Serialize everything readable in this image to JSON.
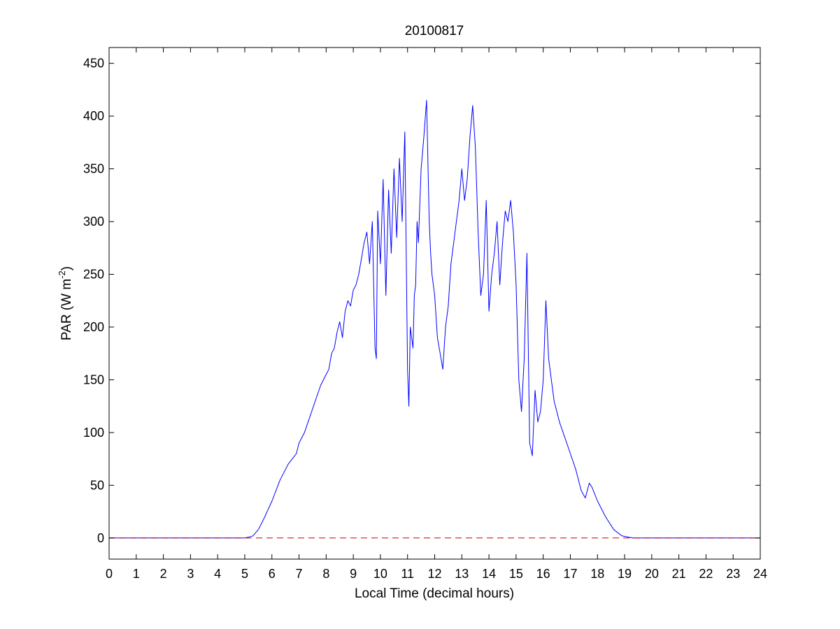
{
  "chart_data": {
    "type": "line",
    "title": "20100817",
    "xlabel": "Local Time (decimal hours)",
    "ylabel": {
      "main": "PAR (W m",
      "superscript": "-2",
      "close": ")"
    },
    "xlim": [
      0,
      24
    ],
    "ylim": [
      -20,
      465
    ],
    "xticks": [
      0,
      1,
      2,
      3,
      4,
      5,
      6,
      7,
      8,
      9,
      10,
      11,
      12,
      13,
      14,
      15,
      16,
      17,
      18,
      19,
      20,
      21,
      22,
      23,
      24
    ],
    "yticks": [
      0,
      50,
      100,
      150,
      200,
      250,
      300,
      350,
      400,
      450
    ],
    "grid": false,
    "legend": "none",
    "series": [
      {
        "color": "#0000ff",
        "style": "solid",
        "x": [
          0,
          5.0,
          5.3,
          5.5,
          5.7,
          6.0,
          6.3,
          6.6,
          6.9,
          7.0,
          7.2,
          7.4,
          7.6,
          7.8,
          8.0,
          8.1,
          8.2,
          8.3,
          8.4,
          8.5,
          8.6,
          8.7,
          8.8,
          8.9,
          9.0,
          9.1,
          9.2,
          9.3,
          9.4,
          9.5,
          9.6,
          9.7,
          9.8,
          9.85,
          9.9,
          10.0,
          10.1,
          10.2,
          10.3,
          10.4,
          10.5,
          10.6,
          10.7,
          10.8,
          10.9,
          11.0,
          11.05,
          11.1,
          11.15,
          11.2,
          11.25,
          11.3,
          11.35,
          11.4,
          11.5,
          11.6,
          11.7,
          11.8,
          11.85,
          11.9,
          12.0,
          12.1,
          12.2,
          12.3,
          12.4,
          12.5,
          12.6,
          12.7,
          12.8,
          12.9,
          13.0,
          13.1,
          13.2,
          13.3,
          13.4,
          13.5,
          13.6,
          13.7,
          13.8,
          13.9,
          14.0,
          14.1,
          14.2,
          14.3,
          14.4,
          14.5,
          14.6,
          14.7,
          14.8,
          14.9,
          15.0,
          15.1,
          15.2,
          15.3,
          15.4,
          15.5,
          15.6,
          15.7,
          15.8,
          15.9,
          16.0,
          16.1,
          16.2,
          16.3,
          16.4,
          16.6,
          16.8,
          17.0,
          17.2,
          17.4,
          17.55,
          17.7,
          17.8,
          18.0,
          18.3,
          18.6,
          18.9,
          19.1,
          19.3,
          19.5,
          24
        ],
        "y": [
          0,
          0,
          2,
          8,
          18,
          35,
          55,
          70,
          80,
          90,
          100,
          115,
          130,
          145,
          155,
          160,
          175,
          180,
          195,
          205,
          190,
          215,
          225,
          220,
          235,
          240,
          250,
          265,
          280,
          290,
          260,
          300,
          180,
          170,
          310,
          260,
          340,
          230,
          330,
          270,
          350,
          285,
          360,
          300,
          385,
          160,
          125,
          200,
          190,
          180,
          230,
          240,
          300,
          280,
          350,
          380,
          415,
          300,
          270,
          250,
          230,
          190,
          175,
          160,
          200,
          220,
          260,
          280,
          300,
          320,
          350,
          320,
          340,
          380,
          410,
          370,
          290,
          230,
          250,
          320,
          215,
          250,
          270,
          300,
          240,
          280,
          310,
          300,
          320,
          290,
          240,
          150,
          120,
          170,
          270,
          90,
          78,
          140,
          110,
          120,
          150,
          225,
          170,
          150,
          130,
          110,
          95,
          80,
          65,
          45,
          38,
          52,
          48,
          35,
          20,
          8,
          2,
          1,
          0,
          0,
          0
        ]
      },
      {
        "color": "#cc0000",
        "style": "dashed",
        "x": [
          0,
          24
        ],
        "y": [
          0,
          0
        ]
      }
    ]
  }
}
